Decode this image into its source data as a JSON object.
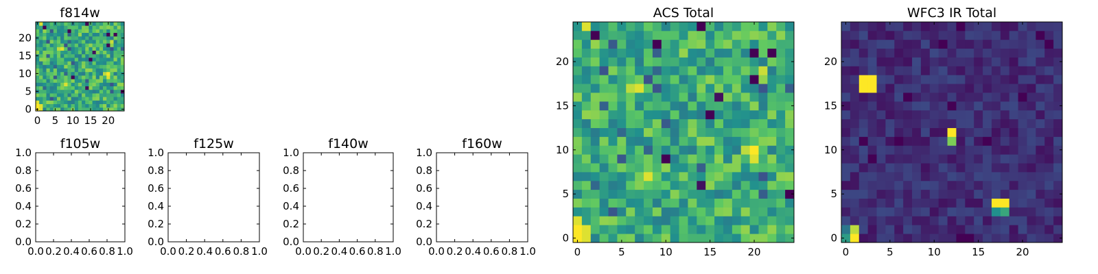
{
  "colormap": [
    "#440154",
    "#3b528b",
    "#21908d",
    "#5dc863",
    "#fde725"
  ],
  "chart_data": [
    {
      "type": "heatmap",
      "title": "f814w",
      "grid_size": [
        25,
        25
      ],
      "xlim": [
        -0.5,
        24.5
      ],
      "ylim": [
        -0.5,
        24.5
      ],
      "xticks": [
        "0",
        "5",
        "10",
        "15",
        "20"
      ],
      "yticks": [
        "0",
        "5",
        "10",
        "15",
        "20"
      ],
      "value_range": [
        0,
        1
      ],
      "values": null,
      "note": "pixel noise with bright spots near (0,0-3) and (20,9-10); same data as ACS Total"
    },
    {
      "type": "empty",
      "title": "f105w",
      "xlim": [
        0,
        1
      ],
      "ylim": [
        0,
        1
      ],
      "xticks": [
        "0.0",
        "0.2",
        "0.4",
        "0.6",
        "0.8",
        "1.0"
      ],
      "yticks": [
        "0.0",
        "0.2",
        "0.4",
        "0.6",
        "0.8",
        "1.0"
      ]
    },
    {
      "type": "empty",
      "title": "f125w",
      "xlim": [
        0,
        1
      ],
      "ylim": [
        0,
        1
      ],
      "xticks": [
        "0.0",
        "0.2",
        "0.4",
        "0.6",
        "0.8",
        "1.0"
      ],
      "yticks": [
        "0.0",
        "0.2",
        "0.4",
        "0.6",
        "0.8",
        "1.0"
      ]
    },
    {
      "type": "empty",
      "title": "f140w",
      "xlim": [
        0,
        1
      ],
      "ylim": [
        0,
        1
      ],
      "xticks": [
        "0.0",
        "0.2",
        "0.4",
        "0.6",
        "0.8",
        "1.0"
      ],
      "yticks": [
        "0.0",
        "0.2",
        "0.4",
        "0.6",
        "0.8",
        "1.0"
      ]
    },
    {
      "type": "empty",
      "title": "f160w",
      "xlim": [
        0,
        1
      ],
      "ylim": [
        0,
        1
      ],
      "xticks": [
        "0.0",
        "0.2",
        "0.4",
        "0.6",
        "0.8",
        "1.0"
      ],
      "yticks": [
        "0.0",
        "0.2",
        "0.4",
        "0.6",
        "0.8",
        "1.0"
      ]
    },
    {
      "type": "heatmap",
      "title": "ACS Total",
      "grid_size": [
        25,
        25
      ],
      "xlim": [
        -0.5,
        24.5
      ],
      "ylim": [
        -0.5,
        24.5
      ],
      "xticks": [
        "0",
        "5",
        "10",
        "15",
        "20"
      ],
      "yticks": [
        "0",
        "5",
        "10",
        "15",
        "20"
      ],
      "value_range": [
        0,
        1
      ],
      "values": null,
      "highlights": [
        {
          "x": 0,
          "y": 0,
          "value": 1.0
        },
        {
          "x": 1,
          "y": 0,
          "value": 0.95
        },
        {
          "x": 0,
          "y": 1,
          "value": 1.0
        },
        {
          "x": 1,
          "y": 1,
          "value": 0.95
        },
        {
          "x": 0,
          "y": 2,
          "value": 0.95
        },
        {
          "x": 20,
          "y": 9,
          "value": 0.95
        },
        {
          "x": 20,
          "y": 10,
          "value": 1.0
        },
        {
          "x": 19,
          "y": 10,
          "value": 0.9
        },
        {
          "x": 8,
          "y": 7,
          "value": 0.95
        },
        {
          "x": 6,
          "y": 17,
          "value": 0.9
        },
        {
          "x": 7,
          "y": 17,
          "value": 0.95
        },
        {
          "x": 21,
          "y": 19,
          "value": 0.92
        },
        {
          "x": 1,
          "y": 24,
          "value": 0.95
        },
        {
          "x": 2,
          "y": 23,
          "value": 0.0
        },
        {
          "x": 15,
          "y": 14,
          "value": 0.0
        },
        {
          "x": 10,
          "y": 9,
          "value": 0.0
        },
        {
          "x": 24,
          "y": 5,
          "value": 0.0
        },
        {
          "x": 9,
          "y": 22,
          "value": 0.0
        },
        {
          "x": 14,
          "y": 24,
          "value": 0.0
        },
        {
          "x": 20,
          "y": 21,
          "value": 0.0
        },
        {
          "x": 22,
          "y": 21,
          "value": 0.0
        },
        {
          "x": 20,
          "y": 18,
          "value": 0.0
        },
        {
          "x": 16,
          "y": 16,
          "value": 0.05
        },
        {
          "x": 14,
          "y": 6,
          "value": 0.05
        }
      ]
    },
    {
      "type": "heatmap",
      "title": "WFC3 IR Total",
      "grid_size": [
        25,
        25
      ],
      "xlim": [
        -0.5,
        24.5
      ],
      "ylim": [
        -0.5,
        24.5
      ],
      "xticks": [
        "0",
        "5",
        "10",
        "15",
        "20"
      ],
      "yticks": [
        "0",
        "5",
        "10",
        "15",
        "20"
      ],
      "value_range": [
        0,
        1
      ],
      "values": null,
      "highlights": [
        {
          "x": 2,
          "y": 17,
          "value": 1.0
        },
        {
          "x": 3,
          "y": 17,
          "value": 1.0
        },
        {
          "x": 2,
          "y": 18,
          "value": 1.0
        },
        {
          "x": 3,
          "y": 18,
          "value": 1.0
        },
        {
          "x": 12,
          "y": 12,
          "value": 1.0
        },
        {
          "x": 12,
          "y": 11,
          "value": 0.8
        },
        {
          "x": 17,
          "y": 4,
          "value": 1.0
        },
        {
          "x": 18,
          "y": 4,
          "value": 1.0
        },
        {
          "x": 17,
          "y": 3,
          "value": 0.5
        },
        {
          "x": 18,
          "y": 3,
          "value": 0.6
        },
        {
          "x": 1,
          "y": 0,
          "value": 1.0
        },
        {
          "x": 1,
          "y": 1,
          "value": 0.9
        },
        {
          "x": 0,
          "y": 0,
          "value": 0.55
        },
        {
          "x": 0,
          "y": 1,
          "value": 0.4
        }
      ]
    }
  ]
}
